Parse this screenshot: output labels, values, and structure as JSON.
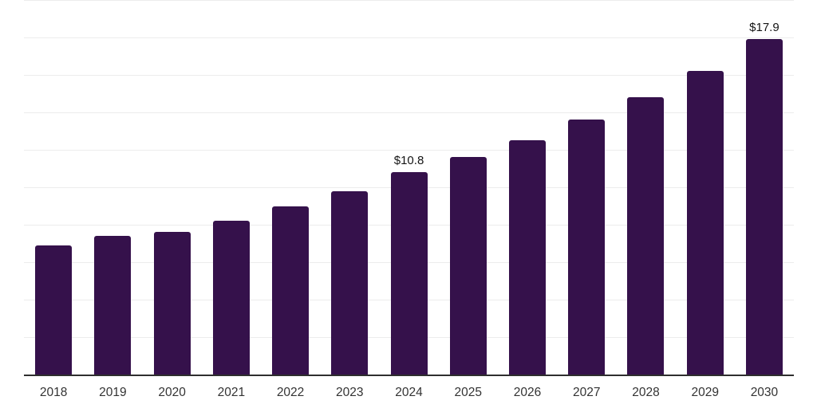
{
  "chart_data": {
    "type": "bar",
    "title": "",
    "xlabel": "",
    "ylabel": "",
    "categories": [
      "2018",
      "2019",
      "2020",
      "2021",
      "2022",
      "2023",
      "2024",
      "2025",
      "2026",
      "2027",
      "2028",
      "2029",
      "2030"
    ],
    "values": [
      6.9,
      7.4,
      7.6,
      8.2,
      9.0,
      9.8,
      10.8,
      11.6,
      12.5,
      13.6,
      14.8,
      16.2,
      17.9
    ],
    "data_labels": [
      "",
      "",
      "",
      "",
      "",
      "",
      "$10.8",
      "",
      "",
      "",
      "",
      "",
      "$17.9"
    ],
    "value_unit_prefix": "$",
    "ylim": [
      0,
      20
    ],
    "gridline_step": 2,
    "grid": true,
    "legend": false,
    "colors": {
      "bar": "#35114B",
      "gridline": "#ECECEC",
      "axis": "#2E2E2E",
      "tick_label": "#333333",
      "data_label": "#141414",
      "background": "#FFFFFF"
    }
  }
}
